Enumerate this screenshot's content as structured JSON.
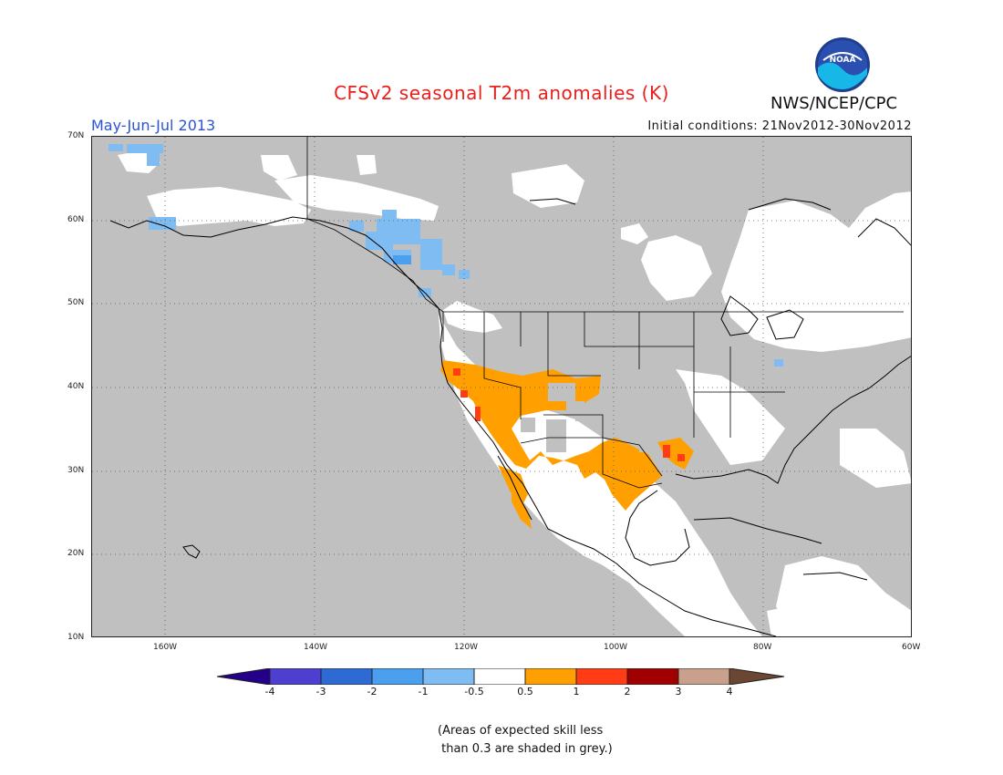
{
  "title": "CFSv2 seasonal T2m anomalies (K)",
  "period": "May-Jun-Jul 2013",
  "initial_conditions": "Initial conditions: 21Nov2012-30Nov2012",
  "agency": "NWS/NCEP/CPC",
  "logo_text": "NOAA",
  "map": {
    "projection": "equirectangular",
    "lon_range": [
      -172,
      -60
    ],
    "lat_range": [
      10,
      70
    ],
    "lat_ticks": [
      "10N",
      "20N",
      "30N",
      "40N",
      "50N",
      "60N",
      "70N"
    ],
    "lon_ticks": [
      "160W",
      "140W",
      "120W",
      "100W",
      "80W",
      "60W"
    ],
    "grid": "dotted",
    "background_color": "#c0c0c0"
  },
  "colorbar": {
    "labels": [
      "-4",
      "-3",
      "-2",
      "-1",
      "-0.5",
      "0.5",
      "1",
      "2",
      "3",
      "4"
    ],
    "colors": [
      "#24008a",
      "#4f3fd0",
      "#2e6ad4",
      "#4aa0ee",
      "#7fbcf2",
      "#ffffff",
      "#ffa000",
      "#ff3c14",
      "#a00000",
      "#c8a08c",
      "#6b4632"
    ]
  },
  "note": "(Areas of expected skill less\n than 0.3 are shaded in grey.)",
  "colors": {
    "grey": "#c0c0c0",
    "white": "#ffffff",
    "light_blue": "#7fbcf2",
    "blue": "#4aa0ee",
    "orange": "#ffa000",
    "red": "#ff3c14"
  }
}
